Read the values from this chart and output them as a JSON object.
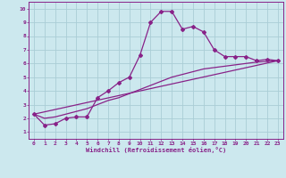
{
  "xlabel": "Windchill (Refroidissement éolien,°C)",
  "bg_color": "#cce8ee",
  "grid_color": "#aacdd6",
  "line_color": "#882288",
  "xlim": [
    -0.5,
    23.5
  ],
  "ylim": [
    0.5,
    10.5
  ],
  "xticks": [
    0,
    1,
    2,
    3,
    4,
    5,
    6,
    7,
    8,
    9,
    10,
    11,
    12,
    13,
    14,
    15,
    16,
    17,
    18,
    19,
    20,
    21,
    22,
    23
  ],
  "yticks": [
    1,
    2,
    3,
    4,
    5,
    6,
    7,
    8,
    9,
    10
  ],
  "curve1_x": [
    0,
    1,
    2,
    3,
    4,
    5,
    6,
    7,
    8,
    9,
    10,
    11,
    12,
    13,
    14,
    15,
    16,
    17,
    18,
    19,
    20,
    21,
    22,
    23
  ],
  "curve1_y": [
    2.3,
    1.5,
    1.6,
    2.0,
    2.1,
    2.1,
    3.5,
    4.0,
    4.6,
    5.0,
    6.6,
    9.0,
    9.8,
    9.8,
    8.5,
    8.7,
    8.3,
    7.0,
    6.5,
    6.5,
    6.5,
    6.2,
    6.3,
    6.2
  ],
  "curve2_x": [
    0,
    23
  ],
  "curve2_y": [
    2.3,
    6.2
  ],
  "curve3_x": [
    0,
    1,
    2,
    3,
    4,
    5,
    6,
    7,
    8,
    9,
    10,
    11,
    12,
    13,
    14,
    15,
    16,
    17,
    18,
    19,
    20,
    21,
    22,
    23
  ],
  "curve3_y": [
    2.3,
    2.0,
    2.1,
    2.3,
    2.5,
    2.7,
    3.0,
    3.3,
    3.5,
    3.8,
    4.1,
    4.4,
    4.7,
    5.0,
    5.2,
    5.4,
    5.6,
    5.7,
    5.8,
    5.9,
    6.0,
    6.1,
    6.15,
    6.2
  ]
}
